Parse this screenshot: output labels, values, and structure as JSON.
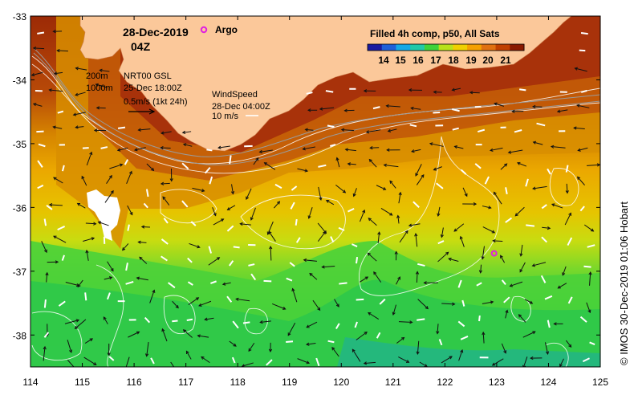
{
  "map": {
    "date": "28-Dec-2019",
    "time": "04Z",
    "argo_label": "Argo",
    "colorbar": {
      "title": "Filled 4h comp, p50, All Sats",
      "ticks": [
        "14",
        "15",
        "16",
        "17",
        "18",
        "19",
        "20",
        "21"
      ],
      "colors": [
        "#1a1aa0",
        "#1f5fd8",
        "#15a8e6",
        "#22c8a8",
        "#3fd23a",
        "#b8e21a",
        "#f0d000",
        "#f5a000",
        "#e07010",
        "#c04000",
        "#8a1a00"
      ]
    },
    "legend": {
      "contour_200": "200m",
      "contour_1000": "1000m",
      "current_title": "NRT00 GSL",
      "current_time": "25-Dec 18:00Z",
      "current_scale": "0.5m/s (1kt 24h)",
      "wind_title": "WindSpeed",
      "wind_time": "28-Dec 04:00Z",
      "wind_scale": "10 m/s"
    },
    "axes": {
      "x_ticks": [
        "114",
        "115",
        "116",
        "117",
        "118",
        "119",
        "120",
        "121",
        "122",
        "123",
        "124",
        "125"
      ],
      "y_ticks": [
        "-33",
        "-34",
        "-35",
        "-36",
        "-37",
        "-38"
      ]
    },
    "credit": "© IMOS 30-Dec-2019 01:06 Hobart",
    "colors": {
      "land": "#fbc89a",
      "argo_marker": "#e020e0",
      "warm": "#b83a08",
      "mid": "#e7b000",
      "cool": "#3fcf3a"
    },
    "argo_floats": [
      {
        "lon": 117.35,
        "lat": -33.2
      },
      {
        "lon": 122.95,
        "lat": -36.72
      }
    ]
  }
}
